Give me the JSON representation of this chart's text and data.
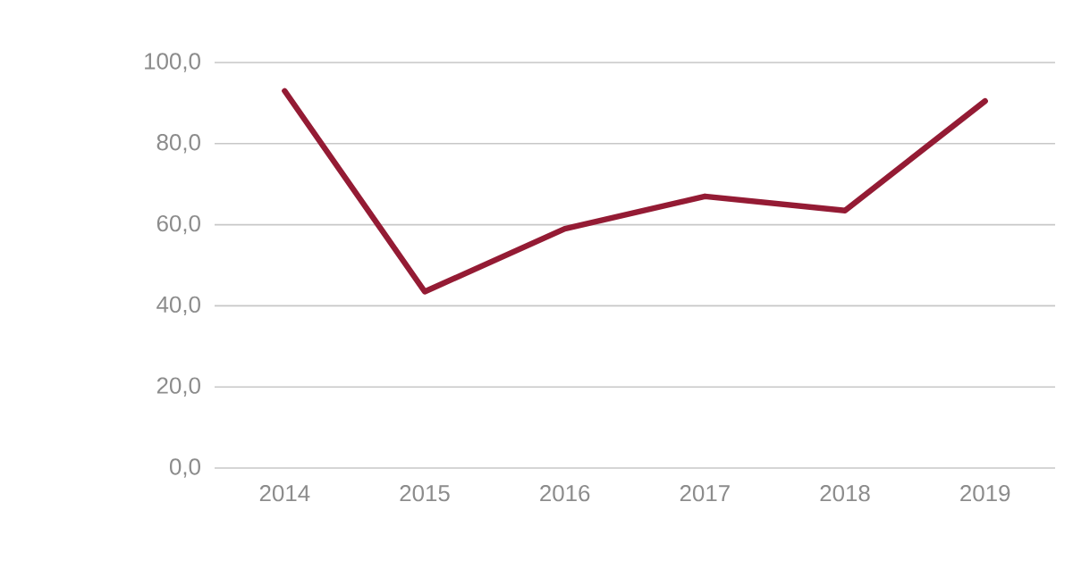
{
  "chart_data": {
    "type": "line",
    "categories": [
      "2014",
      "2015",
      "2016",
      "2017",
      "2018",
      "2019"
    ],
    "series": [
      {
        "color": "#941b34",
        "values": [
          93.0,
          43.5,
          59.0,
          67.0,
          63.5,
          90.5
        ]
      }
    ],
    "ylim": [
      0,
      100
    ],
    "yticks": [
      {
        "value": 0,
        "label": "0,0"
      },
      {
        "value": 20,
        "label": "20,0"
      },
      {
        "value": 40,
        "label": "40,0"
      },
      {
        "value": 60,
        "label": "60,0"
      },
      {
        "value": 80,
        "label": "80,0"
      },
      {
        "value": 100,
        "label": "100,0"
      }
    ],
    "grid": "y",
    "marker": "none",
    "line_style": "solid"
  }
}
